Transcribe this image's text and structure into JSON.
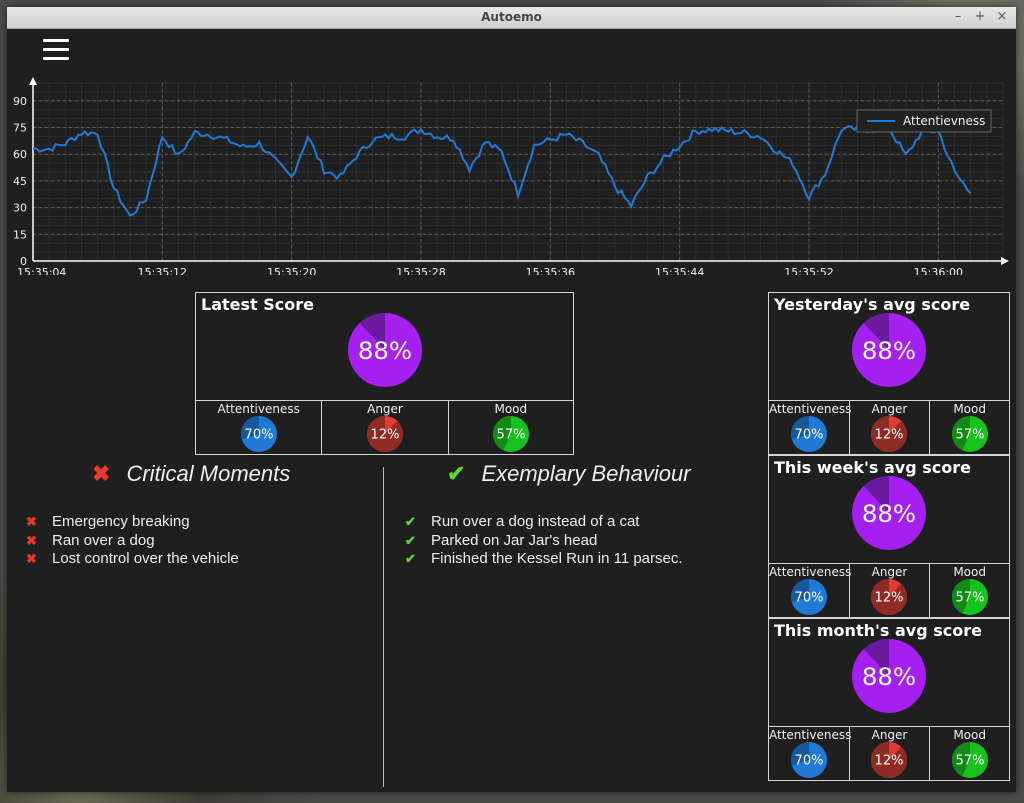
{
  "window": {
    "title": "Autoemo",
    "controls": [
      "–",
      "+",
      "×"
    ]
  },
  "chart_data": {
    "type": "line",
    "series": [
      {
        "name": "Attentievness"
      }
    ],
    "x_ticks": [
      "15:35:04",
      "15:35:12",
      "15:35:20",
      "15:35:28",
      "15:35:36",
      "15:35:44",
      "15:35:52",
      "15:36:00"
    ],
    "y_ticks": [
      0,
      15,
      30,
      45,
      60,
      75,
      90
    ],
    "ylim": [
      0,
      100
    ],
    "grid": true,
    "legend": "top-right",
    "line_color": "#1e7ad6",
    "x_seconds": [
      0,
      1,
      2,
      3,
      4,
      5,
      6,
      7,
      8,
      9,
      10,
      11,
      12,
      13,
      14,
      15,
      16,
      17,
      18,
      19,
      20,
      21,
      22,
      23,
      24,
      25,
      26,
      27,
      28,
      29,
      30,
      31,
      32,
      33,
      34,
      35,
      36,
      37,
      38,
      39,
      40,
      41,
      42,
      43,
      44,
      45,
      46,
      47,
      48,
      49,
      50,
      51,
      52,
      53,
      54,
      55,
      56,
      57,
      58
    ],
    "values": [
      63,
      63,
      66,
      72,
      72,
      41,
      25,
      35,
      70,
      59,
      72,
      71,
      68,
      64,
      66,
      56,
      47,
      70,
      51,
      47,
      59,
      68,
      70,
      70,
      74,
      70,
      69,
      52,
      67,
      61,
      38,
      65,
      68,
      71,
      66,
      59,
      42,
      31,
      47,
      57,
      65,
      73,
      74,
      73,
      72,
      70,
      62,
      55,
      36,
      49,
      74,
      74,
      74,
      74,
      59,
      73,
      73,
      50,
      38
    ]
  },
  "latest": {
    "title": "Latest Score",
    "score": "88%",
    "score_value": 88,
    "subs": [
      {
        "label": "Attentiveness",
        "value": "70%",
        "pct": 70,
        "color": "#1e7ad6",
        "dark": "#16589c"
      },
      {
        "label": "Anger",
        "value": "12%",
        "pct": 12,
        "color": "#e03b2e",
        "dark": "#8e2b25"
      },
      {
        "label": "Mood",
        "value": "57%",
        "pct": 57,
        "color": "#18c21c",
        "dark": "#128a16"
      }
    ]
  },
  "yesterday": {
    "title": "Yesterday's avg score",
    "score": "88%",
    "score_value": 88,
    "subs": [
      {
        "label": "Attentiveness",
        "value": "70%",
        "pct": 70,
        "color": "#1e7ad6",
        "dark": "#16589c"
      },
      {
        "label": "Anger",
        "value": "12%",
        "pct": 12,
        "color": "#e03b2e",
        "dark": "#8e2b25"
      },
      {
        "label": "Mood",
        "value": "57%",
        "pct": 57,
        "color": "#18c21c",
        "dark": "#128a16"
      }
    ]
  },
  "week": {
    "title": "This week's avg score",
    "score": "88%",
    "score_value": 88,
    "subs": [
      {
        "label": "Attentiveness",
        "value": "70%",
        "pct": 70,
        "color": "#1e7ad6",
        "dark": "#16589c"
      },
      {
        "label": "Anger",
        "value": "12%",
        "pct": 12,
        "color": "#e03b2e",
        "dark": "#8e2b25"
      },
      {
        "label": "Mood",
        "value": "57%",
        "pct": 57,
        "color": "#18c21c",
        "dark": "#128a16"
      }
    ]
  },
  "month": {
    "title": "This month's avg score",
    "score": "88%",
    "score_value": 88,
    "subs": [
      {
        "label": "Attentiveness",
        "value": "70%",
        "pct": 70,
        "color": "#1e7ad6",
        "dark": "#16589c"
      },
      {
        "label": "Anger",
        "value": "12%",
        "pct": 12,
        "color": "#e03b2e",
        "dark": "#8e2b25"
      },
      {
        "label": "Mood",
        "value": "57%",
        "pct": 57,
        "color": "#18c21c",
        "dark": "#128a16"
      }
    ]
  },
  "score_colors": {
    "main": "#a51ff0",
    "dark": "#6a1aa0"
  },
  "critical": {
    "heading": "Critical Moments",
    "icon": "✖",
    "color": "#e8382c",
    "items": [
      "Emergency breaking",
      "Ran over a dog",
      "Lost control over the vehicle"
    ]
  },
  "exemplary": {
    "heading": "Exemplary Behaviour",
    "icon": "✔",
    "color": "#5bd62a",
    "items": [
      "Run over a dog instead of a cat",
      "Parked on Jar Jar's head",
      "Finished the Kessel Run in 11 parsec."
    ]
  }
}
